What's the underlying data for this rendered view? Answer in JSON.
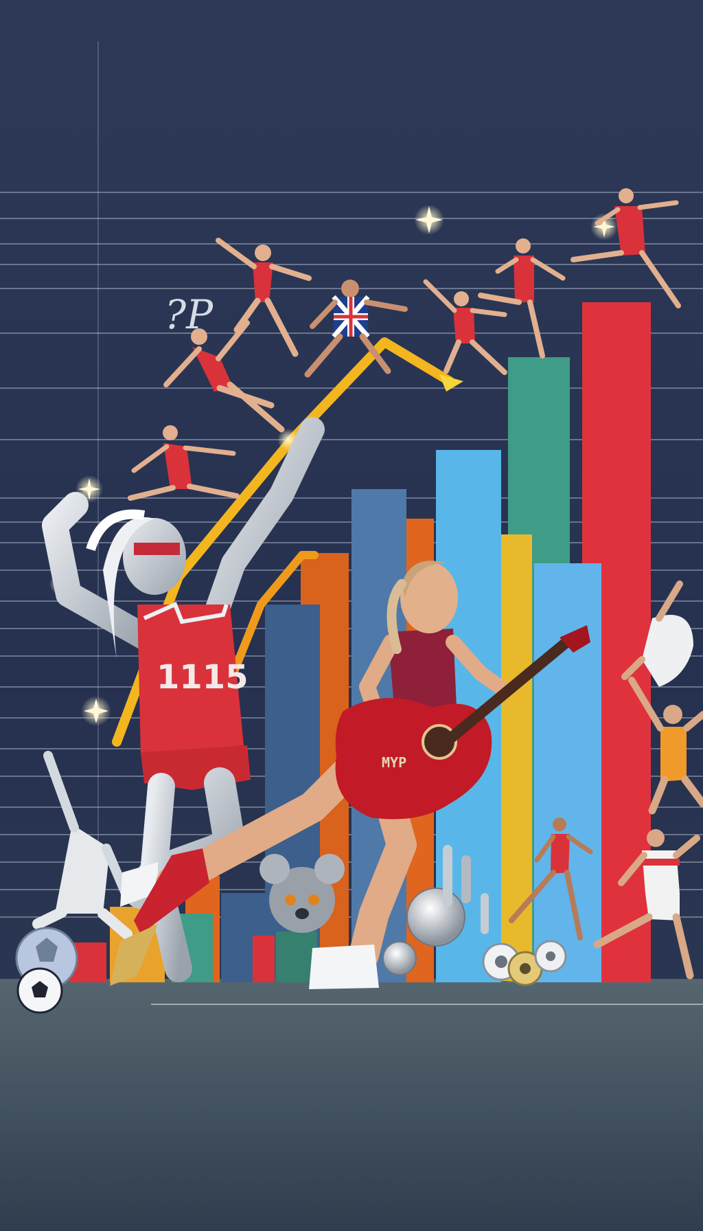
{
  "scene": {
    "jersey_text": "1115",
    "guitar_text": "MYP",
    "floating_sign_text": "?P"
  },
  "colors": {
    "background_top": "#323e5e",
    "background_mid": "#283350",
    "floor": "#4a5a68",
    "bar_red": "#e0323c",
    "bar_teal": "#3f9c86",
    "bar_sky": "#58b7e8",
    "bar_blue": "#4f79a8",
    "bar_orange": "#e0651e",
    "bar_yellow": "#e9b92c",
    "bar_steel": "#3c5f8c",
    "trend_line": "#f3b61f",
    "sparkle": "#fff2b0",
    "outfit_red": "#d9323a"
  }
}
